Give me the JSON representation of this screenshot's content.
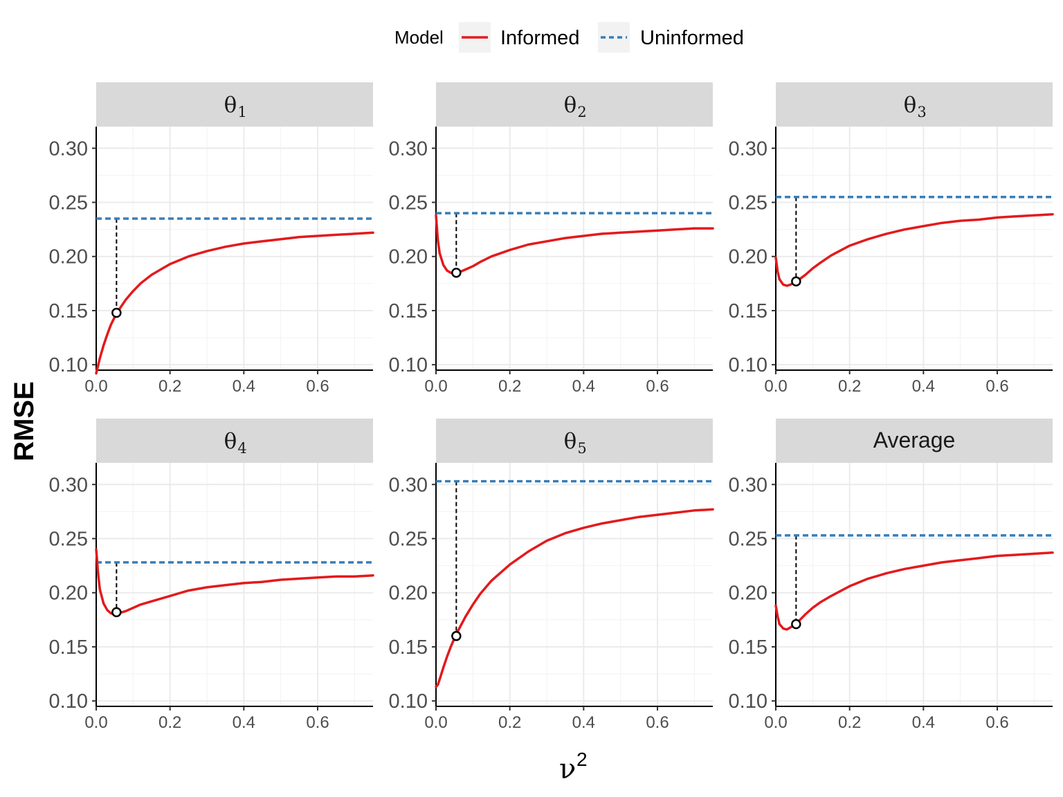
{
  "legend": {
    "title": "Model",
    "entries": [
      {
        "label": "Informed",
        "color": "#e31a1c",
        "linetype": "solid"
      },
      {
        "label": "Uninformed",
        "color": "#377eb8",
        "linetype": "dashed"
      }
    ]
  },
  "axes": {
    "ylabel": "RMSE",
    "xlabel_symbol": "ν",
    "xlabel_superscript": "2",
    "x_ticks": [
      "0.0",
      "0.2",
      "0.4",
      "0.6"
    ],
    "y_ticks": [
      "0.10",
      "0.15",
      "0.20",
      "0.25",
      "0.30"
    ]
  },
  "chart_data": [
    {
      "type": "line",
      "panel": "θ1",
      "strip_symbol": "θ",
      "strip_subscript": "1",
      "xlim": [
        0,
        0.75
      ],
      "ylim": [
        0.095,
        0.32
      ],
      "grid": true,
      "series": [
        {
          "name": "Informed",
          "x": [
            0.0,
            0.01,
            0.02,
            0.03,
            0.04,
            0.05,
            0.06,
            0.08,
            0.1,
            0.12,
            0.15,
            0.18,
            0.2,
            0.25,
            0.3,
            0.35,
            0.4,
            0.45,
            0.5,
            0.55,
            0.6,
            0.65,
            0.7,
            0.75
          ],
          "y": [
            0.092,
            0.106,
            0.118,
            0.128,
            0.137,
            0.144,
            0.15,
            0.16,
            0.168,
            0.175,
            0.183,
            0.189,
            0.193,
            0.2,
            0.205,
            0.209,
            0.212,
            0.214,
            0.216,
            0.218,
            0.219,
            0.22,
            0.221,
            0.222
          ]
        },
        {
          "name": "Uninformed",
          "x": [
            0.0,
            0.75
          ],
          "y": [
            0.235,
            0.235
          ]
        }
      ],
      "optimum": {
        "x": 0.055,
        "y": 0.148
      }
    },
    {
      "type": "line",
      "panel": "θ2",
      "strip_symbol": "θ",
      "strip_subscript": "2",
      "xlim": [
        0,
        0.75
      ],
      "ylim": [
        0.095,
        0.32
      ],
      "grid": true,
      "series": [
        {
          "name": "Informed",
          "x": [
            0.0,
            0.005,
            0.01,
            0.02,
            0.03,
            0.04,
            0.05,
            0.06,
            0.08,
            0.1,
            0.12,
            0.15,
            0.2,
            0.25,
            0.3,
            0.35,
            0.4,
            0.45,
            0.5,
            0.55,
            0.6,
            0.65,
            0.7,
            0.75
          ],
          "y": [
            0.238,
            0.215,
            0.203,
            0.192,
            0.187,
            0.185,
            0.184,
            0.185,
            0.188,
            0.191,
            0.195,
            0.2,
            0.206,
            0.211,
            0.214,
            0.217,
            0.219,
            0.221,
            0.222,
            0.223,
            0.224,
            0.225,
            0.226,
            0.226
          ]
        },
        {
          "name": "Uninformed",
          "x": [
            0.0,
            0.75
          ],
          "y": [
            0.24,
            0.24
          ]
        }
      ],
      "optimum": {
        "x": 0.055,
        "y": 0.185
      }
    },
    {
      "type": "line",
      "panel": "θ3",
      "strip_symbol": "θ",
      "strip_subscript": "3",
      "xlim": [
        0,
        0.75
      ],
      "ylim": [
        0.095,
        0.32
      ],
      "grid": true,
      "series": [
        {
          "name": "Informed",
          "x": [
            0.0,
            0.005,
            0.01,
            0.02,
            0.03,
            0.04,
            0.05,
            0.06,
            0.08,
            0.1,
            0.12,
            0.15,
            0.2,
            0.25,
            0.3,
            0.35,
            0.4,
            0.45,
            0.5,
            0.55,
            0.6,
            0.65,
            0.7,
            0.75
          ],
          "y": [
            0.199,
            0.186,
            0.179,
            0.174,
            0.173,
            0.174,
            0.176,
            0.178,
            0.183,
            0.189,
            0.194,
            0.201,
            0.21,
            0.216,
            0.221,
            0.225,
            0.228,
            0.231,
            0.233,
            0.234,
            0.236,
            0.237,
            0.238,
            0.239
          ]
        },
        {
          "name": "Uninformed",
          "x": [
            0.0,
            0.75
          ],
          "y": [
            0.255,
            0.255
          ]
        }
      ],
      "optimum": {
        "x": 0.055,
        "y": 0.177
      }
    },
    {
      "type": "line",
      "panel": "θ4",
      "strip_symbol": "θ",
      "strip_subscript": "4",
      "xlim": [
        0,
        0.75
      ],
      "ylim": [
        0.095,
        0.32
      ],
      "grid": true,
      "series": [
        {
          "name": "Informed",
          "x": [
            0.0,
            0.005,
            0.01,
            0.02,
            0.03,
            0.04,
            0.05,
            0.06,
            0.08,
            0.1,
            0.12,
            0.15,
            0.2,
            0.25,
            0.3,
            0.35,
            0.4,
            0.45,
            0.5,
            0.55,
            0.6,
            0.65,
            0.7,
            0.75
          ],
          "y": [
            0.24,
            0.218,
            0.203,
            0.19,
            0.184,
            0.181,
            0.18,
            0.181,
            0.183,
            0.186,
            0.189,
            0.192,
            0.197,
            0.202,
            0.205,
            0.207,
            0.209,
            0.21,
            0.212,
            0.213,
            0.214,
            0.215,
            0.215,
            0.216
          ]
        },
        {
          "name": "Uninformed",
          "x": [
            0.0,
            0.75
          ],
          "y": [
            0.228,
            0.228
          ]
        }
      ],
      "optimum": {
        "x": 0.055,
        "y": 0.182
      }
    },
    {
      "type": "line",
      "panel": "θ5",
      "strip_symbol": "θ",
      "strip_subscript": "5",
      "xlim": [
        0,
        0.75
      ],
      "ylim": [
        0.095,
        0.32
      ],
      "grid": true,
      "series": [
        {
          "name": "Informed",
          "x": [
            0.0,
            0.005,
            0.01,
            0.02,
            0.03,
            0.04,
            0.05,
            0.06,
            0.08,
            0.1,
            0.12,
            0.15,
            0.18,
            0.2,
            0.25,
            0.3,
            0.35,
            0.4,
            0.45,
            0.5,
            0.55,
            0.6,
            0.65,
            0.7,
            0.75
          ],
          "y": [
            0.113,
            0.115,
            0.12,
            0.131,
            0.141,
            0.15,
            0.158,
            0.165,
            0.178,
            0.189,
            0.199,
            0.211,
            0.22,
            0.226,
            0.238,
            0.248,
            0.255,
            0.26,
            0.264,
            0.267,
            0.27,
            0.272,
            0.274,
            0.276,
            0.277
          ]
        },
        {
          "name": "Uninformed",
          "x": [
            0.0,
            0.75
          ],
          "y": [
            0.303,
            0.303
          ]
        }
      ],
      "optimum": {
        "x": 0.055,
        "y": 0.16
      }
    },
    {
      "type": "line",
      "panel": "Average",
      "strip_symbol": "Average",
      "strip_subscript": "",
      "xlim": [
        0,
        0.75
      ],
      "ylim": [
        0.095,
        0.32
      ],
      "grid": true,
      "series": [
        {
          "name": "Informed",
          "x": [
            0.0,
            0.005,
            0.01,
            0.02,
            0.03,
            0.04,
            0.05,
            0.06,
            0.08,
            0.1,
            0.12,
            0.15,
            0.2,
            0.25,
            0.3,
            0.35,
            0.4,
            0.45,
            0.5,
            0.55,
            0.6,
            0.65,
            0.7,
            0.75
          ],
          "y": [
            0.188,
            0.178,
            0.171,
            0.167,
            0.166,
            0.168,
            0.17,
            0.173,
            0.18,
            0.186,
            0.191,
            0.197,
            0.206,
            0.213,
            0.218,
            0.222,
            0.225,
            0.228,
            0.23,
            0.232,
            0.234,
            0.235,
            0.236,
            0.237
          ]
        },
        {
          "name": "Uninformed",
          "x": [
            0.0,
            0.75
          ],
          "y": [
            0.253,
            0.253
          ]
        }
      ],
      "optimum": {
        "x": 0.055,
        "y": 0.171
      }
    }
  ]
}
